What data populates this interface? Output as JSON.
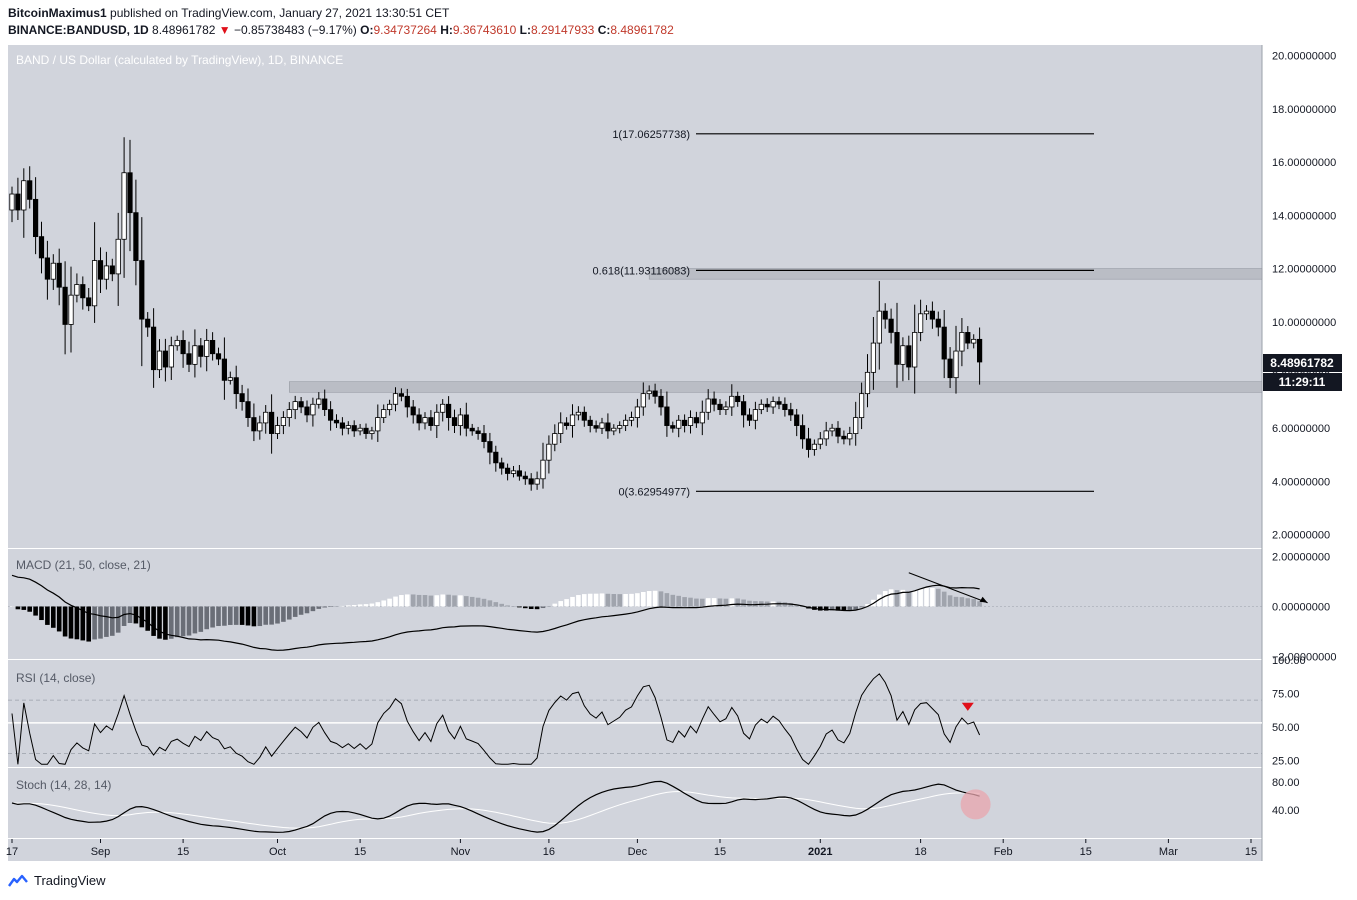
{
  "header": {
    "author": "BitcoinMaximus1",
    "published_text": "published on TradingView.com, January 27, 2021 13:30:51 CET",
    "symbol": "BINANCE:BANDUSD, 1D",
    "last": "8.48961782",
    "change": "−0.85738483 (−9.17%)",
    "o_label": "O:",
    "o_value": "9.34737264",
    "h_label": "H:",
    "h_value": "9.36743610",
    "l_label": "L:",
    "l_value": "8.29147933",
    "c_label": "C:",
    "c_value": "8.48961782"
  },
  "colors": {
    "pane_bg": "#d1d4dc",
    "axis_bg": "#ffffff",
    "text": "#131722",
    "down": "#000000",
    "up": "#ffffff",
    "down_marker": "#e0101a",
    "zone": "#b6b9c1",
    "highlight": "#e8a6ad"
  },
  "footer": {
    "brand": "TradingView",
    "logo_icon": "tradingview-logo-icon"
  },
  "chart_data": [
    {
      "type": "candlestick",
      "title": "BAND / US Dollar (calculated by TradingView), 1D, BINANCE",
      "currency": "USD",
      "y_ticks": [
        "2.00000000",
        "4.00000000",
        "6.00000000",
        "8.00000000",
        "10.00000000",
        "12.00000000",
        "14.00000000",
        "16.00000000",
        "18.00000000",
        "20.00000000"
      ],
      "ylim": [
        1.5,
        20.4
      ],
      "last_price_label": "8.48961782",
      "countdown_label": "11:29:11",
      "fib_levels": [
        {
          "label": "1(17.06257738)",
          "value": 17.06257738
        },
        {
          "label": "0.618(11.93116083)",
          "value": 11.93116083
        },
        {
          "label": "0(3.62954977)",
          "value": 3.62954977
        }
      ],
      "zones": [
        {
          "from": 11.6,
          "to": 12.0
        },
        {
          "from": 7.35,
          "to": 7.75
        }
      ],
      "closes": [
        14.8,
        14.2,
        15.3,
        14.6,
        13.2,
        12.4,
        11.6,
        12.2,
        11.3,
        9.9,
        11.0,
        11.4,
        10.9,
        10.6,
        12.3,
        11.6,
        12.1,
        11.8,
        13.1,
        15.6,
        14.1,
        12.3,
        10.1,
        9.8,
        8.2,
        8.9,
        8.3,
        9.1,
        9.3,
        8.8,
        8.4,
        9.1,
        8.7,
        9.3,
        8.8,
        8.6,
        7.8,
        7.9,
        7.3,
        7.0,
        6.4,
        5.9,
        6.2,
        6.6,
        5.8,
        6.1,
        6.4,
        6.7,
        7.0,
        6.8,
        6.5,
        6.9,
        7.1,
        6.7,
        6.3,
        6.2,
        6.0,
        6.1,
        5.9,
        6.0,
        5.8,
        5.9,
        6.4,
        6.7,
        6.9,
        7.3,
        7.2,
        6.8,
        6.5,
        6.2,
        6.4,
        6.1,
        6.6,
        6.9,
        6.4,
        6.1,
        6.5,
        6.0,
        5.9,
        5.8,
        5.5,
        5.1,
        4.7,
        4.5,
        4.3,
        4.4,
        4.2,
        4.1,
        3.9,
        4.1,
        4.8,
        5.4,
        5.8,
        6.2,
        6.1,
        6.5,
        6.6,
        6.3,
        6.1,
        6.0,
        6.2,
        5.9,
        6.0,
        6.1,
        6.3,
        6.4,
        6.8,
        7.3,
        7.4,
        7.2,
        6.8,
        6.1,
        6.0,
        6.3,
        6.1,
        6.4,
        6.2,
        6.6,
        7.1,
        6.9,
        6.7,
        6.8,
        7.2,
        7.0,
        6.5,
        6.3,
        6.7,
        6.9,
        6.8,
        7.0,
        6.9,
        6.7,
        6.5,
        6.1,
        5.6,
        5.2,
        5.4,
        5.6,
        5.9,
        6.0,
        5.7,
        5.6,
        5.8,
        6.4,
        7.3,
        8.1,
        9.2,
        10.4,
        10.1,
        9.6,
        8.4,
        9.1,
        8.3,
        9.6,
        10.3,
        10.4,
        10.1,
        9.8,
        8.6,
        7.9,
        8.9,
        9.6,
        9.2,
        9.34,
        8.49
      ],
      "x_ticks": [
        {
          "label": "17",
          "index": 0
        },
        {
          "label": "Sep",
          "index": 15
        },
        {
          "label": "15",
          "index": 29
        },
        {
          "label": "Oct",
          "index": 45
        },
        {
          "label": "15",
          "index": 59
        },
        {
          "label": "Nov",
          "index": 76
        },
        {
          "label": "16",
          "index": 91
        },
        {
          "label": "Dec",
          "index": 106
        },
        {
          "label": "15",
          "index": 120
        },
        {
          "label": "2021",
          "index": 137
        },
        {
          "label": "18",
          "index": 154
        },
        {
          "label": "Feb",
          "index": 168
        },
        {
          "label": "15",
          "index": 182
        },
        {
          "label": "Mar",
          "index": 196
        },
        {
          "label": "15",
          "index": 210
        }
      ]
    },
    {
      "type": "macd",
      "title": "MACD (21, 50, close, 21)",
      "y_ticks": [
        "2.00000000",
        "0.00000000",
        "−2.00000000"
      ],
      "ylim": [
        -2.1,
        2.3
      ]
    },
    {
      "type": "line",
      "title": "RSI (14, close)",
      "y_ticks": [
        "100.00",
        "75.00",
        "50.00",
        "25.00"
      ],
      "ylim": [
        20,
        100
      ],
      "bands": [
        70,
        30
      ],
      "level_line": 53
    },
    {
      "type": "line",
      "title": "Stoch (14, 28, 14)",
      "y_ticks": [
        "80.00",
        "40.00"
      ],
      "ylim": [
        0,
        100
      ]
    }
  ]
}
